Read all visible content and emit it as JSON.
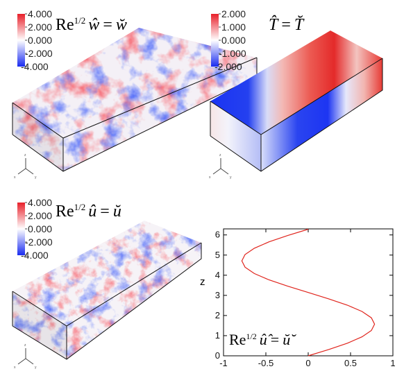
{
  "panels": {
    "w": {
      "colorbar_ticks": [
        "4.000",
        "2.000",
        "0.000",
        "-2.000",
        "-4.000"
      ],
      "label_prefix": "Re",
      "label_exp": "1/2",
      "label_var": "ŵ",
      "label_eq": "=",
      "label_rhs": "w̆"
    },
    "T": {
      "colorbar_ticks": [
        "2.000",
        "1.000",
        "0.000",
        "-1.000",
        "-2.000"
      ],
      "label_var": "T̂",
      "label_eq": "=",
      "label_rhs": "T̆"
    },
    "u": {
      "colorbar_ticks": [
        "4.000",
        "2.000",
        "0.000",
        "-2.000",
        "-4.000"
      ],
      "label_prefix": "Re",
      "label_exp": "1/2",
      "label_var": "û",
      "label_eq": "=",
      "label_rhs": "ŭ"
    }
  },
  "triad": {
    "z": "z",
    "y": "y",
    "x": "x"
  },
  "colors": {
    "positive": "#e8202a",
    "negative": "#1a2cf0",
    "zero": "#ffffff",
    "profile": "#e0241c"
  },
  "chart_data": {
    "type": "line",
    "xlabel": "",
    "ylabel": "z",
    "xlim": [
      -1,
      1
    ],
    "ylim": [
      0,
      6.3
    ],
    "xticks": [
      "-1",
      "-0.5",
      "0",
      "0.5",
      "1"
    ],
    "yticks": [
      "0",
      "1",
      "2",
      "3",
      "4",
      "5",
      "6"
    ],
    "annotation": {
      "prefix": "Re",
      "exp": "1/2",
      "var": "û̂",
      "eq": "=",
      "rhs": "ŭ̆"
    },
    "series": [
      {
        "x": [
          0,
          0.243,
          0.463,
          0.636,
          0.746,
          0.784,
          0.746,
          0.636,
          0.463,
          0.243,
          0,
          -0.243,
          -0.463,
          -0.636,
          -0.746,
          -0.784,
          -0.746,
          -0.636,
          -0.463,
          -0.243,
          0
        ],
        "y": [
          0,
          0.314,
          0.628,
          0.942,
          1.257,
          1.571,
          1.885,
          2.199,
          2.513,
          2.827,
          3.142,
          3.456,
          3.77,
          4.084,
          4.398,
          4.712,
          5.027,
          5.341,
          5.655,
          5.969,
          6.283
        ]
      }
    ]
  }
}
